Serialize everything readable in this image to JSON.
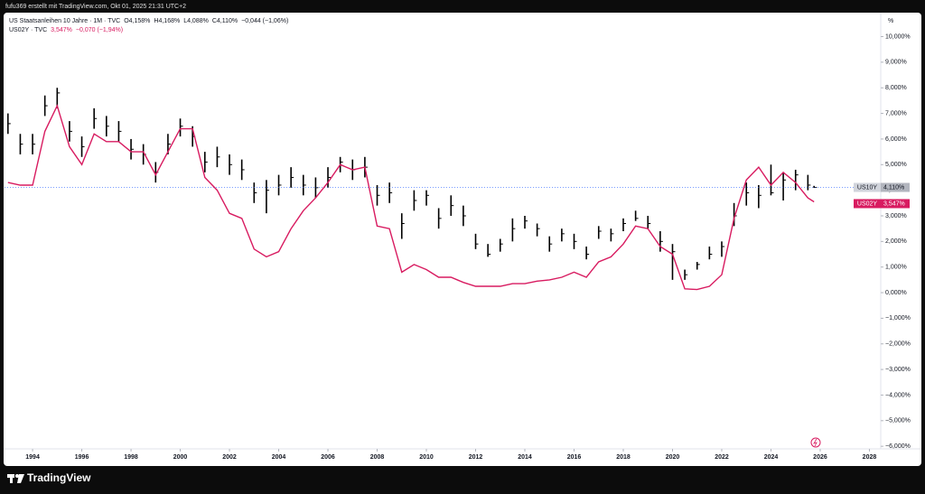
{
  "header": {
    "author_line": "fufu369 erstellt mit TradingView.com, Okt 01, 2025 21:31 UTC+2",
    "logo": "TradingView",
    "unit": "%"
  },
  "chart_data": {
    "type": "financial",
    "legend": [
      {
        "title": "US Staatsanleihen 10 Jahre · 1M · TVC",
        "fields": [
          "O4,158%",
          "H4,168%",
          "L4,088%",
          "C4,110%",
          "−0,044 (−1,06%)"
        ]
      },
      {
        "title": "US02Y · TVC",
        "fields": [
          "3,547%",
          "−0,070 (−1,94%)"
        ]
      }
    ],
    "x": [
      1993.0,
      1993.5,
      1994.0,
      1994.5,
      1995.0,
      1995.5,
      1996.0,
      1996.5,
      1997.0,
      1997.5,
      1998.0,
      1998.5,
      1999.0,
      1999.5,
      2000.0,
      2000.5,
      2001.0,
      2001.5,
      2002.0,
      2002.5,
      2003.0,
      2003.5,
      2004.0,
      2004.5,
      2005.0,
      2005.5,
      2006.0,
      2006.5,
      2007.0,
      2007.5,
      2008.0,
      2008.5,
      2009.0,
      2009.5,
      2010.0,
      2010.5,
      2011.0,
      2011.5,
      2012.0,
      2012.5,
      2013.0,
      2013.5,
      2014.0,
      2014.5,
      2015.0,
      2015.5,
      2016.0,
      2016.5,
      2017.0,
      2017.5,
      2018.0,
      2018.5,
      2019.0,
      2019.5,
      2020.0,
      2020.5,
      2021.0,
      2021.5,
      2022.0,
      2022.5,
      2023.0,
      2023.5,
      2024.0,
      2024.5,
      2025.0,
      2025.5,
      2025.75
    ],
    "series": [
      {
        "name": "US10Y",
        "style": "bars",
        "color": "#000000",
        "tag_color": "#d1d4dc",
        "last_label": "4,110%",
        "values": [
          6.6,
          5.8,
          5.8,
          7.3,
          7.8,
          6.3,
          5.7,
          6.8,
          6.5,
          6.3,
          5.6,
          5.4,
          4.7,
          5.8,
          6.5,
          6.1,
          5.1,
          5.3,
          5.0,
          4.8,
          3.9,
          4.0,
          4.2,
          4.5,
          4.2,
          4.1,
          4.5,
          5.1,
          4.8,
          4.9,
          3.8,
          3.9,
          2.7,
          3.6,
          3.8,
          2.9,
          3.4,
          3.0,
          1.9,
          1.5,
          1.9,
          2.5,
          2.8,
          2.5,
          1.9,
          2.3,
          2.0,
          1.5,
          2.4,
          2.3,
          2.7,
          2.9,
          2.7,
          2.0,
          1.6,
          0.7,
          1.1,
          1.5,
          1.8,
          3.0,
          3.9,
          3.8,
          3.9,
          4.4,
          4.6,
          4.2,
          4.11
        ],
        "high": [
          7.0,
          6.2,
          6.2,
          7.7,
          8.0,
          6.7,
          6.1,
          7.2,
          6.9,
          6.7,
          6.0,
          5.8,
          5.1,
          6.2,
          6.8,
          6.5,
          5.5,
          5.7,
          5.4,
          5.2,
          4.3,
          4.4,
          4.6,
          4.9,
          4.6,
          4.5,
          4.9,
          5.3,
          5.2,
          5.3,
          4.2,
          4.3,
          3.1,
          4.0,
          4.0,
          3.3,
          3.8,
          3.4,
          2.3,
          1.9,
          2.1,
          2.9,
          3.0,
          2.7,
          2.2,
          2.5,
          2.3,
          1.8,
          2.6,
          2.5,
          2.9,
          3.2,
          3.0,
          2.4,
          1.9,
          0.9,
          1.2,
          1.8,
          2.0,
          3.5,
          4.3,
          4.2,
          5.0,
          4.7,
          4.8,
          4.6,
          4.17
        ],
        "low": [
          6.2,
          5.4,
          5.4,
          6.9,
          7.2,
          5.9,
          5.3,
          6.4,
          6.1,
          5.9,
          5.2,
          5.0,
          4.3,
          5.4,
          6.1,
          5.7,
          4.7,
          4.9,
          4.6,
          4.4,
          3.5,
          3.1,
          3.8,
          4.1,
          3.8,
          3.7,
          4.1,
          4.7,
          4.4,
          4.5,
          3.4,
          3.5,
          2.1,
          3.2,
          3.4,
          2.5,
          3.0,
          2.6,
          1.7,
          1.4,
          1.6,
          2.0,
          2.5,
          2.2,
          1.6,
          2.0,
          1.7,
          1.3,
          2.1,
          2.0,
          2.4,
          2.8,
          2.5,
          1.6,
          0.5,
          0.5,
          0.9,
          1.3,
          1.4,
          2.6,
          3.4,
          3.3,
          3.8,
          3.6,
          4.0,
          4.0,
          4.09
        ]
      },
      {
        "name": "US02Y",
        "style": "line",
        "color": "#d81b60",
        "tag_color": "#d81b60",
        "last_label": "3,547%",
        "values": [
          4.3,
          4.2,
          4.2,
          6.3,
          7.3,
          5.7,
          5.0,
          6.2,
          5.9,
          5.9,
          5.5,
          5.5,
          4.6,
          5.5,
          6.4,
          6.4,
          4.5,
          4.0,
          3.1,
          2.9,
          1.7,
          1.4,
          1.6,
          2.5,
          3.2,
          3.7,
          4.3,
          5.0,
          4.8,
          4.9,
          2.6,
          2.5,
          0.8,
          1.1,
          0.9,
          0.6,
          0.6,
          0.4,
          0.25,
          0.25,
          0.25,
          0.35,
          0.35,
          0.45,
          0.5,
          0.6,
          0.8,
          0.6,
          1.2,
          1.4,
          1.9,
          2.6,
          2.5,
          1.8,
          1.5,
          0.15,
          0.12,
          0.25,
          0.7,
          2.9,
          4.4,
          4.9,
          4.2,
          4.7,
          4.3,
          3.7,
          3.547
        ]
      }
    ],
    "xlim": [
      1992.86,
      2028.46
    ],
    "xticks": [
      1994,
      1996,
      1998,
      2000,
      2002,
      2004,
      2006,
      2008,
      2010,
      2012,
      2014,
      2016,
      2018,
      2020,
      2022,
      2024,
      2026,
      2028
    ],
    "ylim": [
      -6.1,
      10.9
    ],
    "yticks": [
      {
        "value": 10,
        "label": "10,000%"
      },
      {
        "value": 9,
        "label": "9,000%"
      },
      {
        "value": 8,
        "label": "8,000%"
      },
      {
        "value": 7,
        "label": "7,000%"
      },
      {
        "value": 6,
        "label": "6,000%"
      },
      {
        "value": 5,
        "label": "5,000%"
      },
      {
        "value": 4,
        "label": "4,000%"
      },
      {
        "value": 3,
        "label": "3,000%"
      },
      {
        "value": 2,
        "label": "2,000%"
      },
      {
        "value": 1,
        "label": "1,000%"
      },
      {
        "value": 0,
        "label": "0,000%"
      },
      {
        "value": -1,
        "label": "−1,000%"
      },
      {
        "value": -2,
        "label": "−2,000%"
      },
      {
        "value": -3,
        "label": "−3,000%"
      },
      {
        "value": -4,
        "label": "−4,000%"
      },
      {
        "value": -5,
        "label": "−5,000%"
      },
      {
        "value": -6,
        "label": "−6,000%"
      }
    ],
    "grid": false
  }
}
